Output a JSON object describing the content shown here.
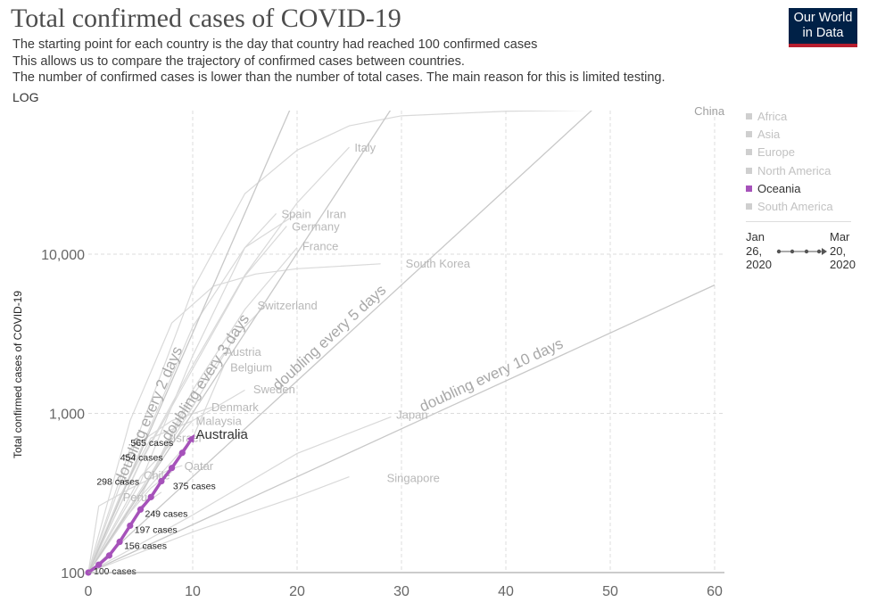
{
  "header": {
    "title": "Total confirmed cases of COVID-19",
    "subtitle_lines": [
      "The starting point for each country is the day that country had reached 100 confirmed cases",
      "This allows us to compare the trajectory of confirmed cases between countries.",
      "The number of confirmed cases is lower than the number of total cases. The main reason for this is limited testing."
    ],
    "scale_toggle": "LOG"
  },
  "logo": {
    "line1": "Our World",
    "line2": "in Data"
  },
  "legend": {
    "items": [
      {
        "label": "Africa",
        "active": false
      },
      {
        "label": "Asia",
        "active": false
      },
      {
        "label": "Europe",
        "active": false
      },
      {
        "label": "North America",
        "active": false
      },
      {
        "label": "Oceania",
        "active": true
      },
      {
        "label": "South America",
        "active": false
      }
    ],
    "timeline": {
      "start_month_day": "Jan",
      "start_day": "26,",
      "start_year": "2020",
      "end_month_day": "Mar",
      "end_day": "20,",
      "end_year": "2020"
    }
  },
  "colors": {
    "highlight": "#a652ba",
    "background_lines": "#d9d9d9",
    "reference_lines": "#c8c8c8",
    "logo_bg": "#002147",
    "logo_accent": "#b71d2e"
  },
  "chart_data": {
    "type": "line",
    "scale": "log",
    "ylabel": "Total confirmed cases of COVID-19",
    "xlabel": "",
    "xlim": [
      0,
      60
    ],
    "ylim": [
      100,
      85000
    ],
    "x_ticks": [
      "0",
      "10",
      "20",
      "30",
      "40",
      "50",
      "60"
    ],
    "y_ticks": [
      {
        "value": 100,
        "label": "100"
      },
      {
        "value": 1000,
        "label": "1,000"
      },
      {
        "value": 10000,
        "label": "10,000"
      }
    ],
    "grid": true,
    "legend_position": "right",
    "highlight_series": {
      "name": "Australia",
      "x": [
        0,
        1,
        2,
        3,
        4,
        5,
        6,
        7,
        8,
        9,
        10
      ],
      "y": [
        100,
        112,
        128,
        156,
        197,
        249,
        298,
        375,
        454,
        565,
        709
      ],
      "point_labels": [
        {
          "x": 0,
          "y": 100,
          "label": "100 cases"
        },
        {
          "x": 3,
          "y": 156,
          "label": "156 cases"
        },
        {
          "x": 4,
          "y": 197,
          "label": "197 cases"
        },
        {
          "x": 5,
          "y": 249,
          "label": "249 cases"
        },
        {
          "x": 6,
          "y": 298,
          "label": "298 cases"
        },
        {
          "x": 7,
          "y": 375,
          "label": "375 cases"
        },
        {
          "x": 8,
          "y": 454,
          "label": "454 cases"
        },
        {
          "x": 9,
          "y": 565,
          "label": "565 cases"
        }
      ]
    },
    "reference_lines": [
      {
        "label": "doubling every 2 days",
        "days": 2
      },
      {
        "label": "doubling every 3 days",
        "days": 3
      },
      {
        "label": "doubling every 5 days",
        "days": 5
      },
      {
        "label": "doubling every 10 days",
        "days": 10
      }
    ],
    "background_series": [
      {
        "name": "China",
        "x": [
          0,
          5,
          10,
          15,
          20,
          25,
          30,
          40,
          50,
          58
        ],
        "y": [
          100,
          800,
          6000,
          24000,
          45000,
          64000,
          74000,
          79000,
          80800,
          81200
        ]
      },
      {
        "name": "Italy",
        "x": [
          0,
          5,
          10,
          15,
          20,
          25
        ],
        "y": [
          100,
          500,
          2000,
          7400,
          21000,
          47000
        ]
      },
      {
        "name": "Spain",
        "x": [
          0,
          5,
          10,
          15,
          18
        ],
        "y": [
          100,
          370,
          2300,
          11000,
          18000
        ]
      },
      {
        "name": "Iran",
        "x": [
          0,
          5,
          10,
          15,
          20
        ],
        "y": [
          100,
          590,
          3500,
          11000,
          18000
        ]
      },
      {
        "name": "Germany",
        "x": [
          0,
          5,
          10,
          15,
          19
        ],
        "y": [
          100,
          490,
          1900,
          7300,
          15000
        ]
      },
      {
        "name": "France",
        "x": [
          0,
          5,
          10,
          15,
          20
        ],
        "y": [
          100,
          300,
          1400,
          4500,
          11000
        ]
      },
      {
        "name": "South Korea",
        "x": [
          0,
          4,
          8,
          12,
          16,
          20,
          28
        ],
        "y": [
          100,
          900,
          3700,
          6300,
          7500,
          8100,
          8700
        ]
      },
      {
        "name": "Switzerland",
        "x": [
          0,
          5,
          10,
          14,
          17
        ],
        "y": [
          100,
          330,
          1100,
          3000,
          4800
        ]
      },
      {
        "name": "Austria",
        "x": [
          0,
          5,
          10,
          13
        ],
        "y": [
          100,
          300,
          1300,
          2400
        ]
      },
      {
        "name": "Belgium",
        "x": [
          0,
          5,
          10,
          13
        ],
        "y": [
          100,
          300,
          700,
          2000
        ]
      },
      {
        "name": "Sweden",
        "x": [
          0,
          5,
          10,
          15
        ],
        "y": [
          100,
          400,
          900,
          1400
        ]
      },
      {
        "name": "Denmark",
        "x": [
          0,
          4,
          8,
          12
        ],
        "y": [
          100,
          600,
          900,
          1100
        ]
      },
      {
        "name": "Malaysia",
        "x": [
          0,
          3,
          6,
          10
        ],
        "y": [
          100,
          300,
          700,
          900
        ]
      },
      {
        "name": "Israel",
        "x": [
          0,
          3,
          6,
          8
        ],
        "y": [
          100,
          200,
          400,
          700
        ]
      },
      {
        "name": "Qatar",
        "x": [
          0,
          1,
          4,
          8,
          9
        ],
        "y": [
          100,
          262,
          337,
          450,
          470
        ]
      },
      {
        "name": "Chile",
        "x": [
          0,
          3,
          6,
          8
        ],
        "y": [
          100,
          200,
          340,
          430
        ]
      },
      {
        "name": "Peru",
        "x": [
          0,
          3,
          5,
          7
        ],
        "y": [
          100,
          150,
          260,
          320
        ]
      },
      {
        "name": "Japan",
        "x": [
          0,
          10,
          20,
          29
        ],
        "y": [
          100,
          230,
          560,
          950
        ]
      },
      {
        "name": "Singapore",
        "x": [
          0,
          10,
          20,
          25
        ],
        "y": [
          100,
          180,
          300,
          400
        ]
      }
    ],
    "country_labels": [
      {
        "name": "China",
        "x": 59.5,
        "y": 80000,
        "color": "#a0a0a0"
      },
      {
        "name": "Italy",
        "x": 25.5,
        "y": 47000,
        "color": "#b8b8b8"
      },
      {
        "name": "Spain",
        "x": 18.5,
        "y": 18000,
        "color": "#b8b8b8"
      },
      {
        "name": "Iran",
        "x": 22.8,
        "y": 18000,
        "color": "#b8b8b8"
      },
      {
        "name": "Germany",
        "x": 19.5,
        "y": 15000,
        "color": "#b8b8b8"
      },
      {
        "name": "France",
        "x": 20.5,
        "y": 11300,
        "color": "#b8b8b8"
      },
      {
        "name": "South Korea",
        "x": 30.4,
        "y": 8800,
        "color": "#b8b8b8"
      },
      {
        "name": "Switzerland",
        "x": 16.2,
        "y": 4800,
        "color": "#b8b8b8"
      },
      {
        "name": "Austria",
        "x": 13.1,
        "y": 2450,
        "color": "#b8b8b8"
      },
      {
        "name": "Belgium",
        "x": 13.6,
        "y": 1950,
        "color": "#b8b8b8"
      },
      {
        "name": "Sweden",
        "x": 15.8,
        "y": 1430,
        "color": "#b8b8b8"
      },
      {
        "name": "Denmark",
        "x": 11.8,
        "y": 1100,
        "color": "#b8b8b8"
      },
      {
        "name": "Malaysia",
        "x": 10.3,
        "y": 900,
        "color": "#b8b8b8"
      },
      {
        "name": "Israel",
        "x": 8.1,
        "y": 705,
        "color": "#b8b8b8"
      },
      {
        "name": "Australia",
        "x": 10.3,
        "y": 740,
        "color": "#333333"
      },
      {
        "name": "Qatar",
        "x": 9.2,
        "y": 470,
        "color": "#b8b8b8"
      },
      {
        "name": "Chile",
        "x": 5.3,
        "y": 410,
        "color": "#b8b8b8"
      },
      {
        "name": "Peru",
        "x": 3.3,
        "y": 300,
        "color": "#b8b8b8"
      },
      {
        "name": "Japan",
        "x": 29.5,
        "y": 985,
        "color": "#b8b8b8"
      },
      {
        "name": "Singapore",
        "x": 28.6,
        "y": 395,
        "color": "#b8b8b8"
      }
    ]
  }
}
